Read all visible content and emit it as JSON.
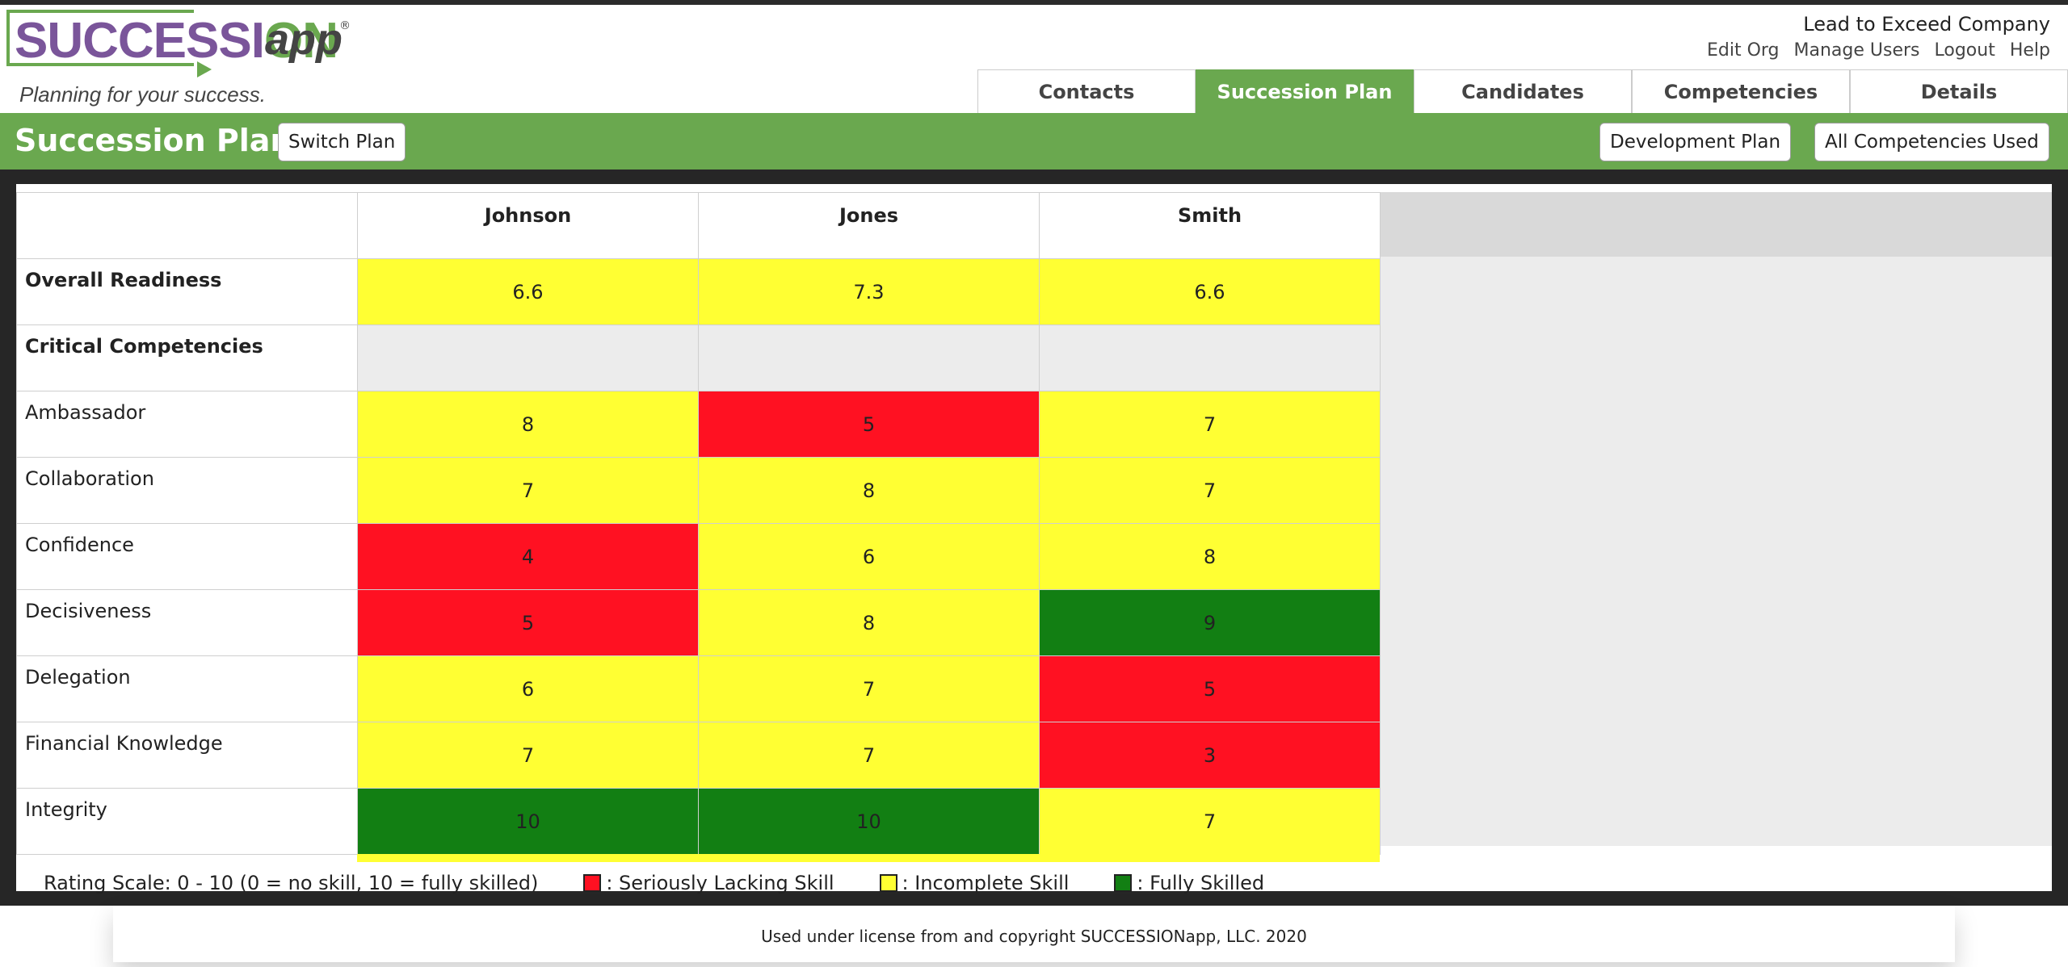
{
  "brand": {
    "logo_main": "SUCCESSION",
    "logo_app": "app",
    "logo_reg": "®",
    "tagline": "Planning for your success."
  },
  "header": {
    "company": "Lead to Exceed Company",
    "links": [
      "Edit Org",
      "Manage Users",
      "Logout",
      "Help"
    ]
  },
  "tabs": [
    {
      "label": "Contacts",
      "active": false
    },
    {
      "label": "Succession Plan",
      "active": true
    },
    {
      "label": "Candidates",
      "active": false
    },
    {
      "label": "Competencies",
      "active": false
    },
    {
      "label": "Details",
      "active": false
    }
  ],
  "toolbar": {
    "title": "Succession Plan",
    "switch_plan": "Switch Plan",
    "development_plan": "Development Plan",
    "all_competencies": "All Competencies Used"
  },
  "colors": {
    "green": "#6aa84f",
    "red": "#ff1122",
    "yellow": "#ffff33",
    "darkgreen": "#127f13"
  },
  "matrix": {
    "candidates": [
      "Johnson",
      "Jones",
      "Smith"
    ],
    "rows": [
      {
        "label": "Overall Readiness",
        "bold": true,
        "values": [
          "6.6",
          "7.3",
          "6.6"
        ],
        "levels": [
          "yellow",
          "yellow",
          "yellow"
        ]
      },
      {
        "label": "Critical Competencies",
        "bold": true,
        "values": [
          "",
          "",
          ""
        ],
        "levels": [
          "empty",
          "empty",
          "empty"
        ]
      },
      {
        "label": "Ambassador",
        "bold": false,
        "values": [
          "8",
          "5",
          "7"
        ],
        "levels": [
          "yellow",
          "red",
          "yellow"
        ]
      },
      {
        "label": "Collaboration",
        "bold": false,
        "values": [
          "7",
          "8",
          "7"
        ],
        "levels": [
          "yellow",
          "yellow",
          "yellow"
        ]
      },
      {
        "label": "Confidence",
        "bold": false,
        "values": [
          "4",
          "6",
          "8"
        ],
        "levels": [
          "red",
          "yellow",
          "yellow"
        ]
      },
      {
        "label": "Decisiveness",
        "bold": false,
        "values": [
          "5",
          "8",
          "9"
        ],
        "levels": [
          "red",
          "yellow",
          "green"
        ]
      },
      {
        "label": "Delegation",
        "bold": false,
        "values": [
          "6",
          "7",
          "5"
        ],
        "levels": [
          "yellow",
          "yellow",
          "red"
        ]
      },
      {
        "label": "Financial Knowledge",
        "bold": false,
        "values": [
          "7",
          "7",
          "3"
        ],
        "levels": [
          "yellow",
          "yellow",
          "red"
        ]
      },
      {
        "label": "Integrity",
        "bold": false,
        "values": [
          "10",
          "10",
          "7"
        ],
        "levels": [
          "green",
          "green",
          "yellow"
        ]
      }
    ]
  },
  "legend": {
    "scale": "Rating Scale: 0 - 10 (0 = no skill, 10 = fully skilled)",
    "red": ": Seriously Lacking Skill",
    "yellow": ": Incomplete Skill",
    "green": ": Fully Skilled"
  },
  "footer": {
    "text": "Used under license from and copyright SUCCESSIONapp, LLC. 2020"
  }
}
